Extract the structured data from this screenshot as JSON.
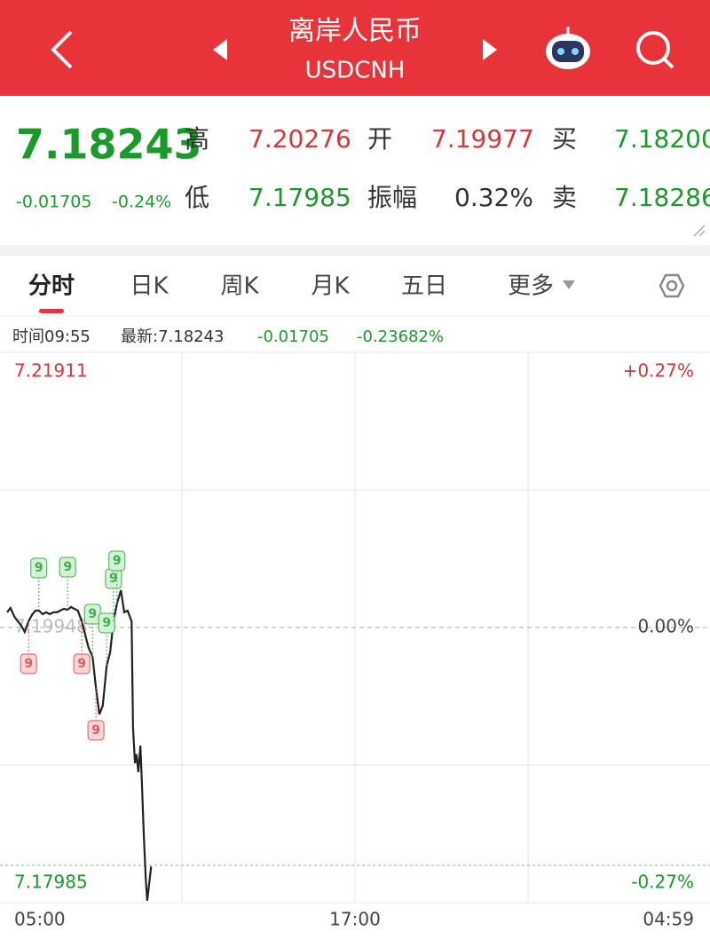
{
  "header": {
    "title": "离岸人民币",
    "subtitle": "USDCNH"
  },
  "quote": {
    "price": "7.18243",
    "change": "-0.01705",
    "change_pct": "-0.24%",
    "high_label": "高",
    "high": "7.20276",
    "open_label": "开",
    "open": "7.19977",
    "bid_label": "买",
    "bid": "7.18200",
    "low_label": "低",
    "low": "7.17985",
    "amp_label": "振幅",
    "amp": "0.32%",
    "ask_label": "卖",
    "ask": "7.18286"
  },
  "tabs": [
    "分时",
    "日K",
    "周K",
    "月K",
    "五日",
    "更多"
  ],
  "info": {
    "time": "时间09:55",
    "latest": "最新:7.18243",
    "change": "-0.01705",
    "change_pct": "-0.23682%"
  },
  "chart_data": {
    "type": "line",
    "x_labels": [
      "05:00",
      "17:00",
      "04:59"
    ],
    "ylim": [
      7.17985,
      7.21911
    ],
    "yticks": [
      7.21911,
      7.19948,
      7.17985
    ],
    "y2lim": [
      -0.27,
      0.27
    ],
    "y2ticks": [
      {
        "value": 0.27,
        "label": "+0.27%"
      },
      {
        "value": 0,
        "label": "0.00%"
      },
      {
        "value": -0.27,
        "label": "-0.27%"
      }
    ],
    "series": [
      {
        "name": "USDCNH",
        "color": "#222222",
        "x": [
          "05:00",
          "05:07",
          "05:15",
          "05:22",
          "05:29",
          "05:36",
          "05:44",
          "05:51",
          "05:58",
          "06:05",
          "06:13",
          "06:20",
          "06:27",
          "06:35",
          "06:42",
          "06:49",
          "06:56",
          "07:04",
          "07:11",
          "07:18",
          "07:25",
          "07:33",
          "07:40",
          "07:47",
          "07:55",
          "08:02",
          "08:09",
          "08:16",
          "08:24",
          "08:31",
          "08:38",
          "08:45",
          "08:53",
          "09:00",
          "09:07",
          "09:15",
          "09:18",
          "09:22",
          "09:25",
          "09:29",
          "09:33",
          "09:36",
          "09:40",
          "09:44",
          "09:47",
          "09:55"
        ],
        "values": [
          7.20056,
          7.20087,
          7.20024,
          7.19992,
          7.19961,
          7.19916,
          7.19992,
          7.20037,
          7.20068,
          7.20068,
          7.20043,
          7.20056,
          7.20043,
          7.20056,
          7.20056,
          7.20068,
          7.20081,
          7.20075,
          7.20094,
          7.20081,
          7.20068,
          7.19992,
          7.19897,
          7.19802,
          7.19739,
          7.19518,
          7.19328,
          7.19391,
          7.19676,
          7.19771,
          7.19992,
          7.20119,
          7.20214,
          7.20056,
          7.20068,
          7.19992,
          7.19233,
          7.18979,
          7.19043,
          7.18916,
          7.19106,
          7.18853,
          7.18473,
          7.18156,
          7.17998,
          7.18243
        ]
      }
    ],
    "markers": [
      {
        "label": "9",
        "time": "05:44",
        "kind": "down"
      },
      {
        "label": "9",
        "time": "06:05",
        "kind": "up"
      },
      {
        "label": "9",
        "time": "07:04",
        "kind": "up"
      },
      {
        "label": "9",
        "time": "07:33",
        "kind": "down"
      },
      {
        "label": "9",
        "time": "07:55",
        "kind": "up"
      },
      {
        "label": "9",
        "time": "08:02",
        "kind": "down"
      },
      {
        "label": "9",
        "time": "08:24",
        "kind": "up"
      },
      {
        "label": "9",
        "time": "08:38",
        "kind": "up"
      },
      {
        "label": "9",
        "time": "08:45",
        "kind": "up"
      }
    ]
  }
}
